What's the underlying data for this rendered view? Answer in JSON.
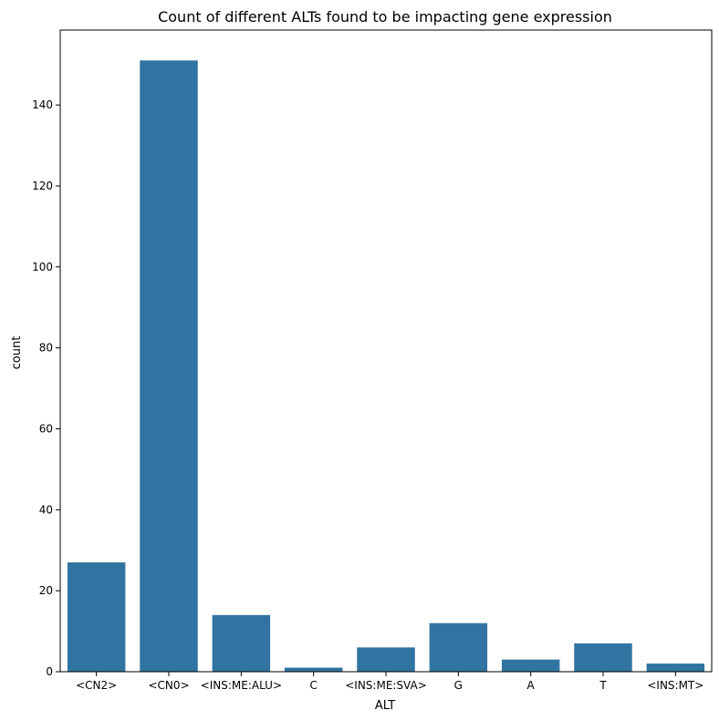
{
  "chart_data": {
    "type": "bar",
    "title": "Count of different ALTs found to be impacting gene expression",
    "xlabel": "ALT",
    "ylabel": "count",
    "categories": [
      "<CN2>",
      "<CN0>",
      "<INS:ME:ALU>",
      "C",
      "<INS:ME:SVA>",
      "G",
      "A",
      "T",
      "<INS:MT>"
    ],
    "values": [
      27,
      151,
      14,
      1,
      6,
      12,
      3,
      7,
      2
    ],
    "ylim": [
      0,
      158.5
    ],
    "yticks": [
      0,
      20,
      40,
      60,
      80,
      100,
      120,
      140
    ],
    "bar_color": "#3274a1",
    "grid": false,
    "legend": "none"
  }
}
